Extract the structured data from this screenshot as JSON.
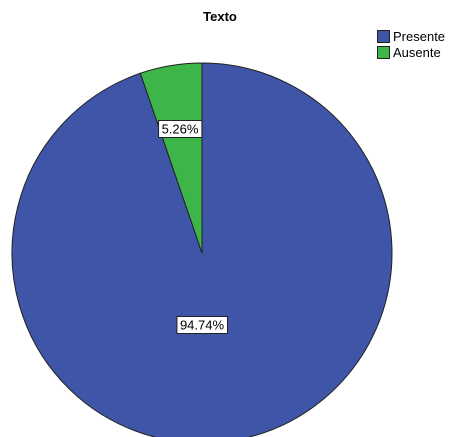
{
  "chart_data": {
    "type": "pie",
    "title": "Texto",
    "categories": [
      "Presente",
      "Ausente"
    ],
    "values": [
      94.74,
      5.26
    ],
    "data_labels": [
      "94.74%",
      "5.26%"
    ],
    "colors": [
      "#3f55a8",
      "#3db549"
    ],
    "legend_position": "top-right"
  }
}
